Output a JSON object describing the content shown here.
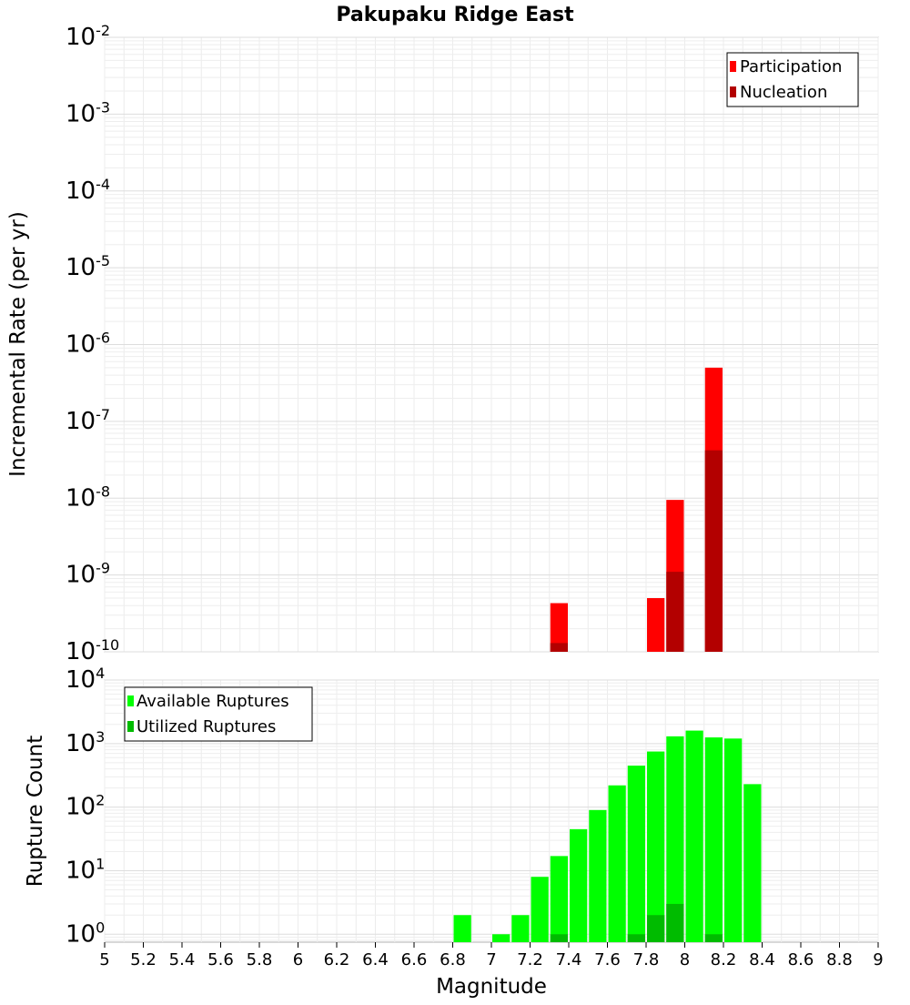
{
  "chart_data": [
    {
      "type": "bar",
      "title": "Pakupaku Ridge East",
      "xlabel": "",
      "ylabel": "Incremental Rate (per yr)",
      "yscale": "log",
      "ylim": [
        1e-10,
        0.01
      ],
      "xlim": [
        5,
        9
      ],
      "bin_width": 0.1,
      "y_tick_exponents": [
        "-2",
        "-3",
        "-4",
        "-5",
        "-6",
        "-7",
        "-8",
        "-9",
        "-10"
      ],
      "legend": {
        "position": "top-right",
        "entries": [
          "Participation",
          "Nucleation"
        ]
      },
      "series": [
        {
          "name": "Participation",
          "color": "#ff0000",
          "x": [
            7.35,
            7.85,
            7.95,
            8.15
          ],
          "values": [
            4.3e-10,
            5e-10,
            9.5e-09,
            5e-07
          ]
        },
        {
          "name": "Nucleation",
          "color": "#b30000",
          "x": [
            7.35,
            7.95,
            8.15
          ],
          "values": [
            1.3e-10,
            1.1e-09,
            4.2e-08
          ]
        }
      ]
    },
    {
      "type": "bar",
      "title": "",
      "xlabel": "Magnitude",
      "ylabel": "Rupture Count",
      "yscale": "log",
      "ylim": [
        0.75,
        10000
      ],
      "xlim": [
        5,
        9
      ],
      "bin_width": 0.1,
      "y_tick_exponents": [
        "4",
        "3",
        "2",
        "1",
        "0"
      ],
      "x_tick_labels": [
        "5",
        "5.2",
        "5.4",
        "5.6",
        "5.8",
        "6",
        "6.2",
        "6.4",
        "6.6",
        "6.8",
        "7",
        "7.2",
        "7.4",
        "7.6",
        "7.8",
        "8",
        "8.2",
        "8.4",
        "8.6",
        "8.8",
        "9"
      ],
      "legend": {
        "position": "top-left",
        "entries": [
          "Available Ruptures",
          "Utilized Ruptures"
        ]
      },
      "series": [
        {
          "name": "Available Ruptures",
          "color": "#00ff00",
          "x": [
            6.85,
            7.05,
            7.15,
            7.25,
            7.35,
            7.45,
            7.55,
            7.65,
            7.75,
            7.85,
            7.95,
            8.05,
            8.15,
            8.25,
            8.35
          ],
          "values": [
            2,
            1,
            2,
            8,
            17,
            45,
            90,
            220,
            450,
            750,
            1300,
            1600,
            1250,
            1200,
            230
          ]
        },
        {
          "name": "Utilized Ruptures",
          "color": "#00bb00",
          "x": [
            7.35,
            7.75,
            7.85,
            7.95,
            8.15
          ],
          "values": [
            1,
            1,
            2,
            3,
            1
          ]
        }
      ]
    }
  ]
}
